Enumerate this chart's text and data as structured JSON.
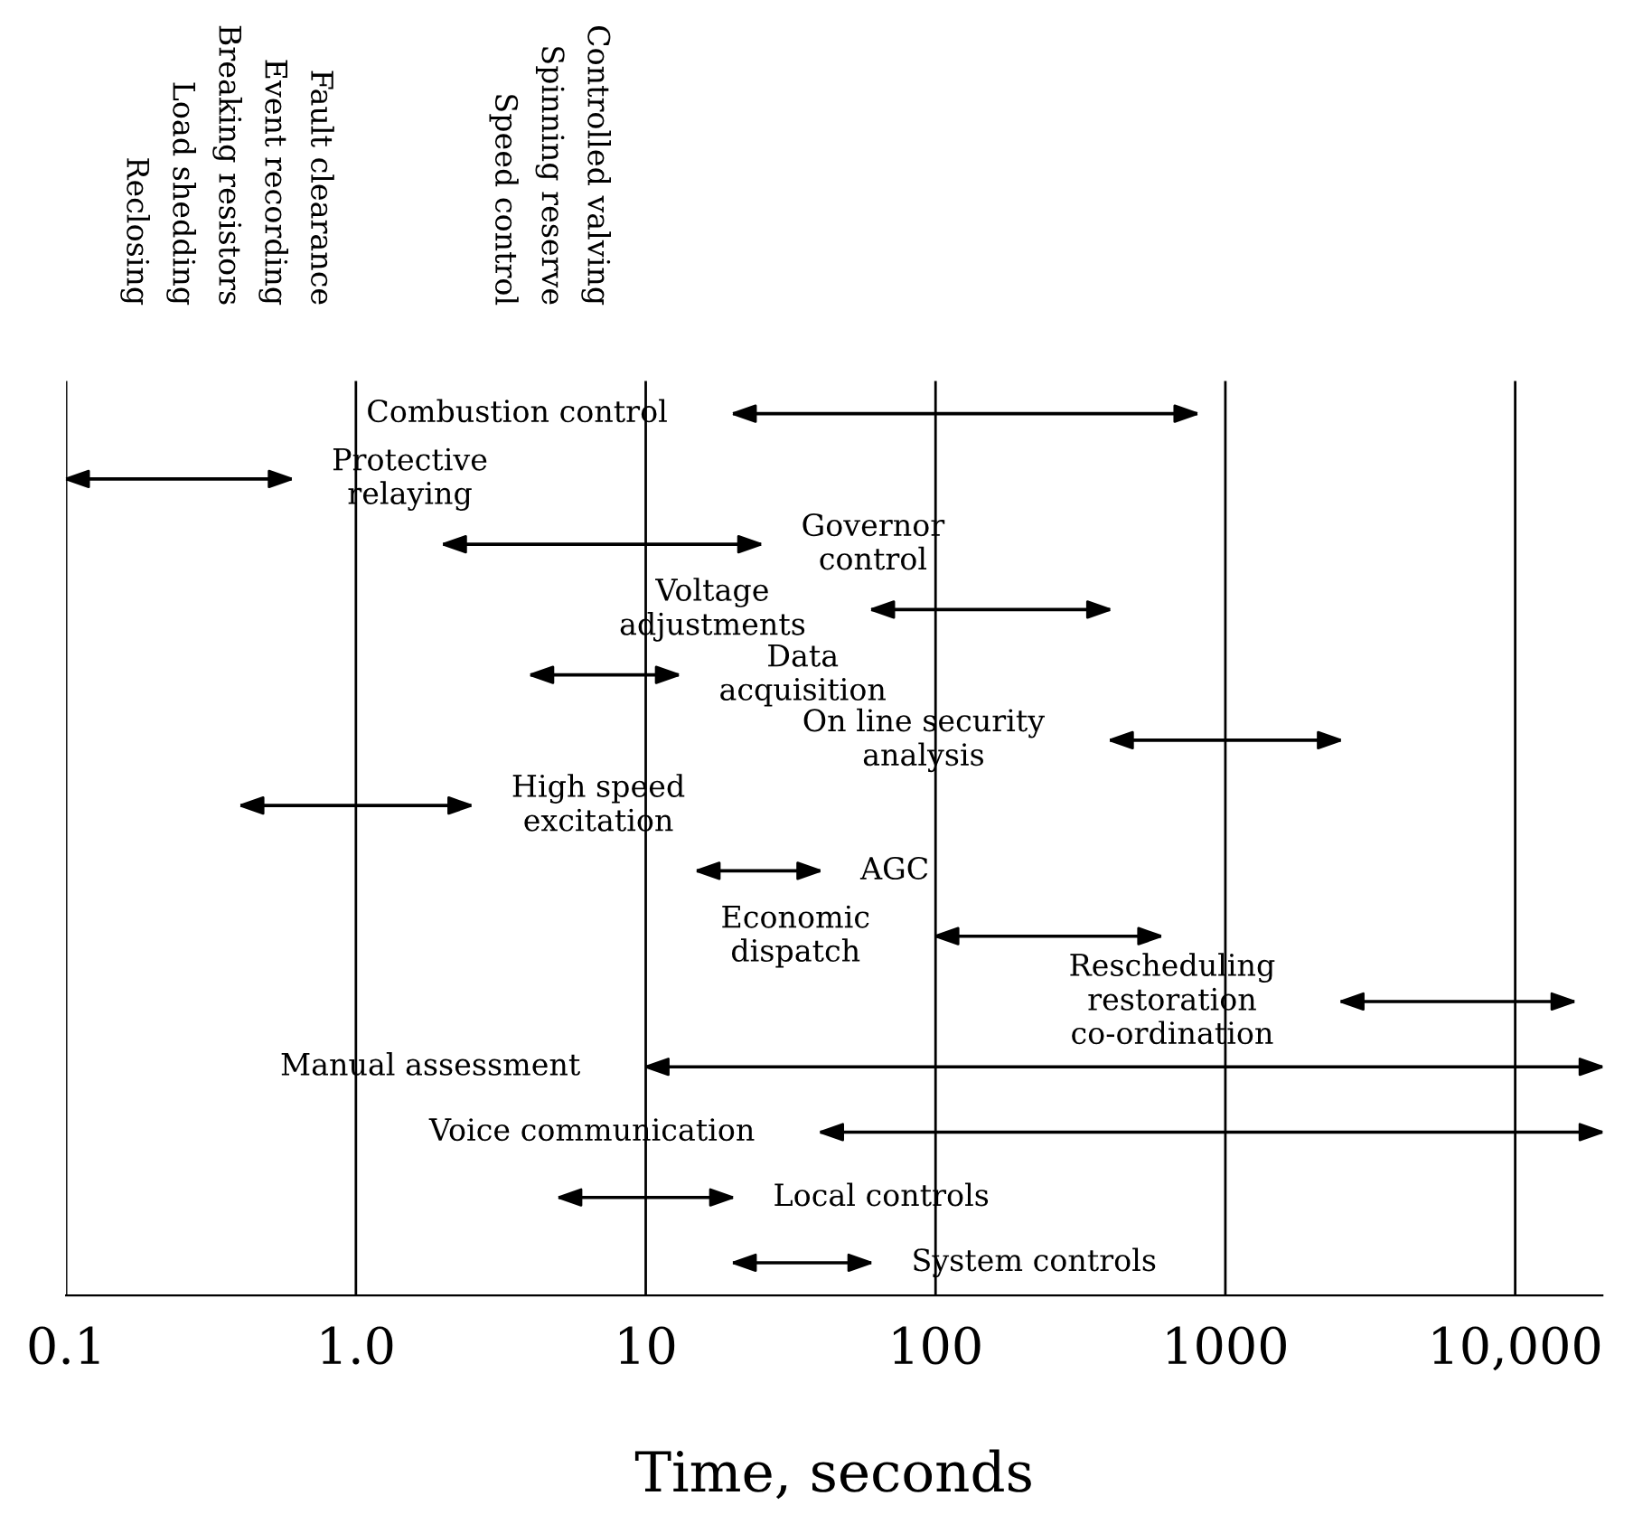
{
  "chart_data": {
    "type": "bar",
    "orientation": "horizontal",
    "log": "x",
    "xlabel": "Time, seconds",
    "categories": [
      "Combustion control",
      "Protective\nrelaying",
      "Governor\ncontrol",
      "Voltage\nadjustments",
      "Data\nacquisition",
      "On line security\nanalysis",
      "High speed\nexcitation",
      "AGC",
      "Economic\ndispatch",
      "Rescheduling\nrestoration\nco-ordination",
      "Manual assessment",
      "Voice communication",
      "Local controls",
      "System controls"
    ],
    "base": [
      20,
      0.1,
      2,
      60,
      4,
      400,
      0.4,
      15,
      100,
      2500,
      10,
      40,
      5,
      20
    ],
    "values": [
      780,
      0.5,
      23,
      340,
      9,
      2100,
      2.1,
      25,
      500,
      13500,
      19990,
      19960,
      15,
      40
    ],
    "color": "#000000",
    "xlim": [
      0.1,
      20000
    ],
    "xticks": [
      0.1,
      {
        "value": 1,
        "label": "1.0"
      },
      10,
      100,
      1000,
      {
        "value": 10000,
        "label": "10,000"
      }
    ],
    "grid": "x",
    "tick_labels": "x",
    "annotations": [
      "Reclosing",
      "Load shedding",
      "Breaking resistors",
      "Event recording",
      "Fault clearance",
      "Speed control",
      "Spinning reserve",
      "Controlled valving"
    ]
  }
}
